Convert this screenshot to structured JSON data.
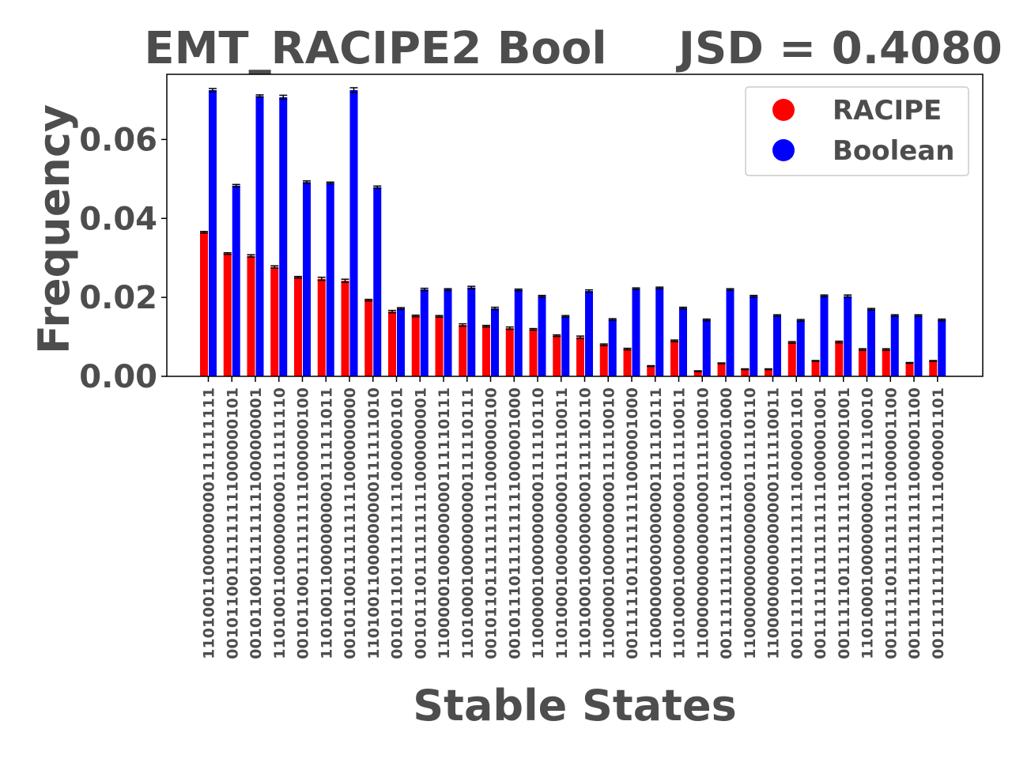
{
  "chart_data": {
    "type": "bar",
    "title": "EMT_RACIPE2 Bool",
    "subtitle": "JSD = 0.4080",
    "xlabel": "Stable States",
    "ylabel": "Frequency",
    "ylim": [
      0,
      0.0765
    ],
    "yticks": [
      "0.00",
      "0.02",
      "0.04",
      "0.06"
    ],
    "grid": false,
    "legend_position": "top-right",
    "categories": [
      "11010011000000000111111111",
      "00101100111111111000000101",
      "00101100111111111000000001",
      "11010011000000000111111110",
      "00101100111111111000000100",
      "11010011000000000111111011",
      "00101100111111111000000000",
      "11010011000000000111111010",
      "00101110111111111000000101",
      "00101110111111111000000001",
      "11000001000000000111110111",
      "11010001000000000111110111",
      "00101101111111111000000100",
      "00101110111111111000001000",
      "11000001000000000111110110",
      "11010001000000000111110011",
      "11010001000000000111110110",
      "11000001000000000111110010",
      "00111110111111111000001000",
      "11000000000000000111110111",
      "11010001000000000111110011",
      "11000000000000000111110010",
      "00111111111111111000001000",
      "11000000000000000111110110",
      "11000000000000000111110011",
      "00111110111111111000001101",
      "00111111111111111000001001",
      "00111110111111111000001001",
      "11010001000000000111110010",
      "00111110111111111000001100",
      "00111111111111111000001100",
      "00111111111111111000001101"
    ],
    "series": [
      {
        "name": "RACIPE",
        "color": "#ff0000",
        "values": [
          0.0365,
          0.0311,
          0.0305,
          0.0277,
          0.0251,
          0.0247,
          0.0242,
          0.0193,
          0.0164,
          0.0153,
          0.0152,
          0.013,
          0.0127,
          0.0122,
          0.0119,
          0.0103,
          0.0099,
          0.008,
          0.0069,
          0.0026,
          0.009,
          0.0013,
          0.0033,
          0.0018,
          0.0018,
          0.0086,
          0.0039,
          0.0087,
          0.0068,
          0.0068,
          0.0034,
          0.0039
        ],
        "errors": [
          0.0002,
          0.0002,
          0.0003,
          0.0003,
          0.0002,
          0.0004,
          0.0004,
          0.0002,
          0.0003,
          0.0002,
          0.0002,
          0.0003,
          0.0002,
          0.0003,
          0.0002,
          0.0002,
          0.0003,
          0.0002,
          0.0002,
          0.0001,
          0.0002,
          0.0001,
          0.0001,
          0.0001,
          0.0001,
          0.0002,
          0.0001,
          0.0002,
          0.0002,
          0.0002,
          0.0001,
          0.0001
        ]
      },
      {
        "name": "Boolean",
        "color": "#0000ff",
        "values": [
          0.0725,
          0.0483,
          0.071,
          0.0707,
          0.0492,
          0.049,
          0.0725,
          0.0479,
          0.0172,
          0.022,
          0.022,
          0.0225,
          0.0172,
          0.0219,
          0.0203,
          0.0152,
          0.0216,
          0.0144,
          0.0222,
          0.0224,
          0.0173,
          0.0143,
          0.022,
          0.0203,
          0.0154,
          0.0142,
          0.0204,
          0.0203,
          0.017,
          0.0154,
          0.0154,
          0.0143
        ],
        "errors": [
          0.0004,
          0.0003,
          0.0003,
          0.0005,
          0.0003,
          0.0002,
          0.0006,
          0.0003,
          0.0002,
          0.0003,
          0.0002,
          0.0003,
          0.0003,
          0.0002,
          0.0002,
          0.0002,
          0.0003,
          0.0002,
          0.0002,
          0.0002,
          0.0002,
          0.0002,
          0.0002,
          0.0002,
          0.0002,
          0.0002,
          0.0002,
          0.0003,
          0.0002,
          0.0002,
          0.0002,
          0.0002
        ]
      }
    ]
  }
}
